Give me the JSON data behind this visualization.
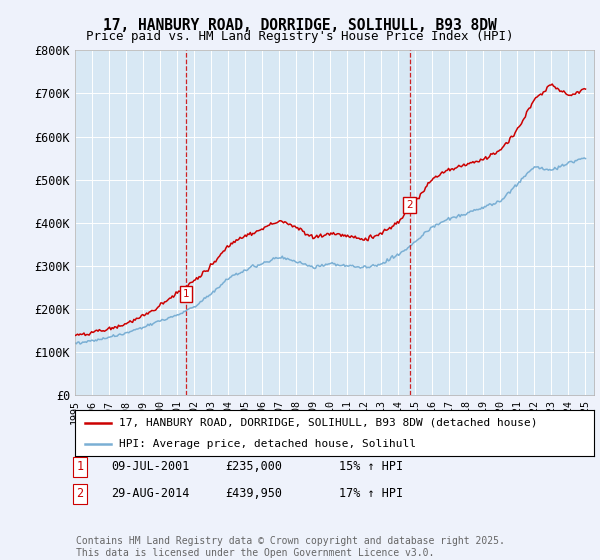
{
  "title": "17, HANBURY ROAD, DORRIDGE, SOLIHULL, B93 8DW",
  "subtitle": "Price paid vs. HM Land Registry's House Price Index (HPI)",
  "ylabel_ticks": [
    "£0",
    "£100K",
    "£200K",
    "£300K",
    "£400K",
    "£500K",
    "£600K",
    "£700K",
    "£800K"
  ],
  "ytick_values": [
    0,
    100000,
    200000,
    300000,
    400000,
    500000,
    600000,
    700000,
    800000
  ],
  "ylim": [
    0,
    800000
  ],
  "xlim_start": 1995.0,
  "xlim_end": 2025.5,
  "background_color": "#eef2fb",
  "plot_bg_color": "#d8e8f4",
  "red_line_color": "#cc0000",
  "blue_line_color": "#7aafd4",
  "marker1_x": 2001.52,
  "marker1_y": 235000,
  "marker2_x": 2014.66,
  "marker2_y": 439950,
  "legend_red": "17, HANBURY ROAD, DORRIDGE, SOLIHULL, B93 8DW (detached house)",
  "legend_blue": "HPI: Average price, detached house, Solihull",
  "table_row1": [
    "1",
    "09-JUL-2001",
    "£235,000",
    "15% ↑ HPI"
  ],
  "table_row2": [
    "2",
    "29-AUG-2014",
    "£439,950",
    "17% ↑ HPI"
  ],
  "footer": "Contains HM Land Registry data © Crown copyright and database right 2025.\nThis data is licensed under the Open Government Licence v3.0.",
  "title_fontsize": 10.5,
  "subtitle_fontsize": 9,
  "tick_fontsize": 8.5,
  "legend_fontsize": 8,
  "table_fontsize": 8.5,
  "footer_fontsize": 7,
  "hpi_waypoints_x": [
    1995,
    1996,
    1997,
    1998,
    1999,
    2000,
    2001,
    2002,
    2003,
    2004,
    2005,
    2006,
    2007,
    2008,
    2009,
    2010,
    2011,
    2012,
    2013,
    2014,
    2015,
    2016,
    2017,
    2018,
    2019,
    2020,
    2021,
    2022,
    2023,
    2024,
    2025
  ],
  "hpi_waypoints_y": [
    120000,
    125000,
    133000,
    143000,
    157000,
    172000,
    185000,
    205000,
    235000,
    270000,
    290000,
    305000,
    320000,
    310000,
    295000,
    305000,
    300000,
    295000,
    305000,
    325000,
    355000,
    390000,
    410000,
    420000,
    435000,
    450000,
    490000,
    530000,
    520000,
    540000,
    550000
  ],
  "prop_waypoints_x": [
    1995,
    1996,
    1997,
    1998,
    1999,
    2000,
    2001,
    2002,
    2003,
    2004,
    2005,
    2006,
    2007,
    2008,
    2009,
    2010,
    2011,
    2012,
    2013,
    2014,
    2015,
    2016,
    2017,
    2018,
    2019,
    2020,
    2021,
    2022,
    2023,
    2024,
    2025
  ],
  "prop_waypoints_y": [
    138000,
    145000,
    153000,
    165000,
    182000,
    208000,
    235000,
    265000,
    300000,
    345000,
    370000,
    385000,
    405000,
    390000,
    365000,
    375000,
    370000,
    360000,
    375000,
    400000,
    450000,
    500000,
    525000,
    535000,
    548000,
    568000,
    615000,
    685000,
    720000,
    695000,
    710000
  ]
}
